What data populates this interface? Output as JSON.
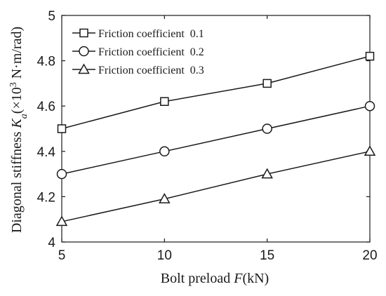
{
  "chart_data": {
    "type": "line",
    "x": [
      5,
      10,
      15,
      20
    ],
    "xticks": [
      "5",
      "10",
      "15",
      "20"
    ],
    "yticks": [
      "4",
      "4.2",
      "4.4",
      "4.6",
      "4.8",
      "5"
    ],
    "xlim": [
      5,
      20
    ],
    "ylim": [
      4,
      5
    ],
    "xlabel": {
      "prefix": "Bolt preload ",
      "symbol": "F",
      "suffix": "(kN)"
    },
    "ylabel": {
      "prefix": "Diagonal stiffness ",
      "symbol": "K",
      "subscript": "a",
      "unit_open": "(×10",
      "unit_power": "3",
      "unit_close": " N·m/rad)"
    },
    "legend_position": "top-left",
    "grid": false,
    "series": [
      {
        "name": "Friction coefficient  0.1",
        "marker": "square",
        "values": [
          4.5,
          4.62,
          4.7,
          4.82
        ]
      },
      {
        "name": "Friction coefficient  0.2",
        "marker": "circle",
        "values": [
          4.3,
          4.4,
          4.5,
          4.6
        ]
      },
      {
        "name": "Friction coefficient  0.3",
        "marker": "triangle",
        "values": [
          4.09,
          4.19,
          4.3,
          4.4
        ]
      }
    ]
  }
}
